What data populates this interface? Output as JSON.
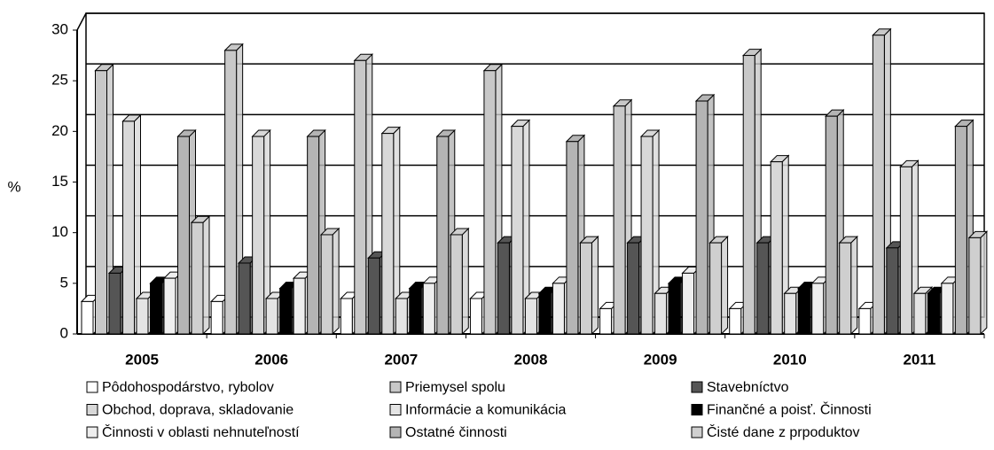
{
  "chart_data": {
    "type": "bar3d",
    "ylabel": "%",
    "categories": [
      "2005",
      "2006",
      "2007",
      "2008",
      "2009",
      "2010",
      "2011"
    ],
    "series": [
      {
        "name": "Pôdohospodárstvo, rybolov",
        "color": "#ffffff",
        "values": [
          3.2,
          3.2,
          3.5,
          3.5,
          2.5,
          2.5,
          2.5
        ]
      },
      {
        "name": "Priemysel spolu",
        "color": "#c8c8c8",
        "values": [
          26,
          28,
          27,
          26,
          22.5,
          27.5,
          29.5
        ]
      },
      {
        "name": "Stavebníctvo",
        "color": "#555555",
        "values": [
          6,
          7,
          7.5,
          9,
          9,
          9,
          8.5
        ]
      },
      {
        "name": "Obchod, doprava, skladovanie",
        "color": "#d8d8d8",
        "values": [
          21,
          19.5,
          19.8,
          20.5,
          19.5,
          17,
          16.5
        ]
      },
      {
        "name": "Informácie a komunikácia",
        "color": "#e4e4e4",
        "values": [
          3.5,
          3.5,
          3.5,
          3.5,
          4,
          4,
          4
        ]
      },
      {
        "name": "Finančné a poisť. Činnosti",
        "color": "#000000",
        "values": [
          5,
          4.5,
          4.5,
          4,
          5,
          4.5,
          4
        ]
      },
      {
        "name": "Činnosti v oblasti nehnuteľností",
        "color": "#eeeeee",
        "values": [
          5.5,
          5.5,
          5,
          5,
          6,
          5,
          5
        ]
      },
      {
        "name": "Ostatné činnosti",
        "color": "#b4b4b4",
        "values": [
          19.5,
          19.5,
          19.5,
          19,
          23,
          21.5,
          20.5
        ]
      },
      {
        "name": "Čisté dane z prpoduktov",
        "color": "#cfcfcf",
        "values": [
          11,
          9.8,
          9.8,
          9,
          9,
          9,
          9.5
        ]
      }
    ],
    "ylim": [
      0,
      30
    ],
    "yticks": [
      0,
      5,
      10,
      15,
      20,
      25,
      30
    ],
    "grid": true
  }
}
